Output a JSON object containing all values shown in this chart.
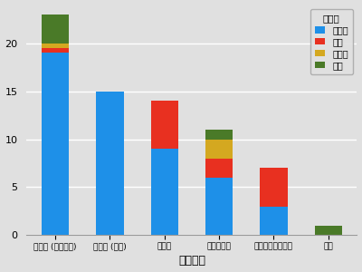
{
  "categories": [
    "儒教圏 (中国以外)",
    "儒教圏 (中国)",
    "ラテン",
    "東南アジア",
    "アングロサクソン",
    "不明"
  ],
  "japanese": [
    19,
    15,
    9,
    6,
    3,
    0
  ],
  "english": [
    0.5,
    0,
    5,
    2,
    4,
    0
  ],
  "other": [
    0.5,
    0,
    0,
    2,
    0,
    0
  ],
  "unknown": [
    3,
    0,
    0,
    1,
    0,
    1
  ],
  "colors": {
    "japanese": "#1e90e8",
    "english": "#e83020",
    "other": "#d4a820",
    "unknown": "#4a7a28"
  },
  "legend_labels": [
    "日本語",
    "英語",
    "その他",
    "不明"
  ],
  "legend_title": "主言語",
  "xlabel": "文化分類",
  "bg_color": "#e0e0e0",
  "ylim": [
    0,
    24
  ],
  "yticks": [
    0,
    5,
    10,
    15,
    20
  ]
}
